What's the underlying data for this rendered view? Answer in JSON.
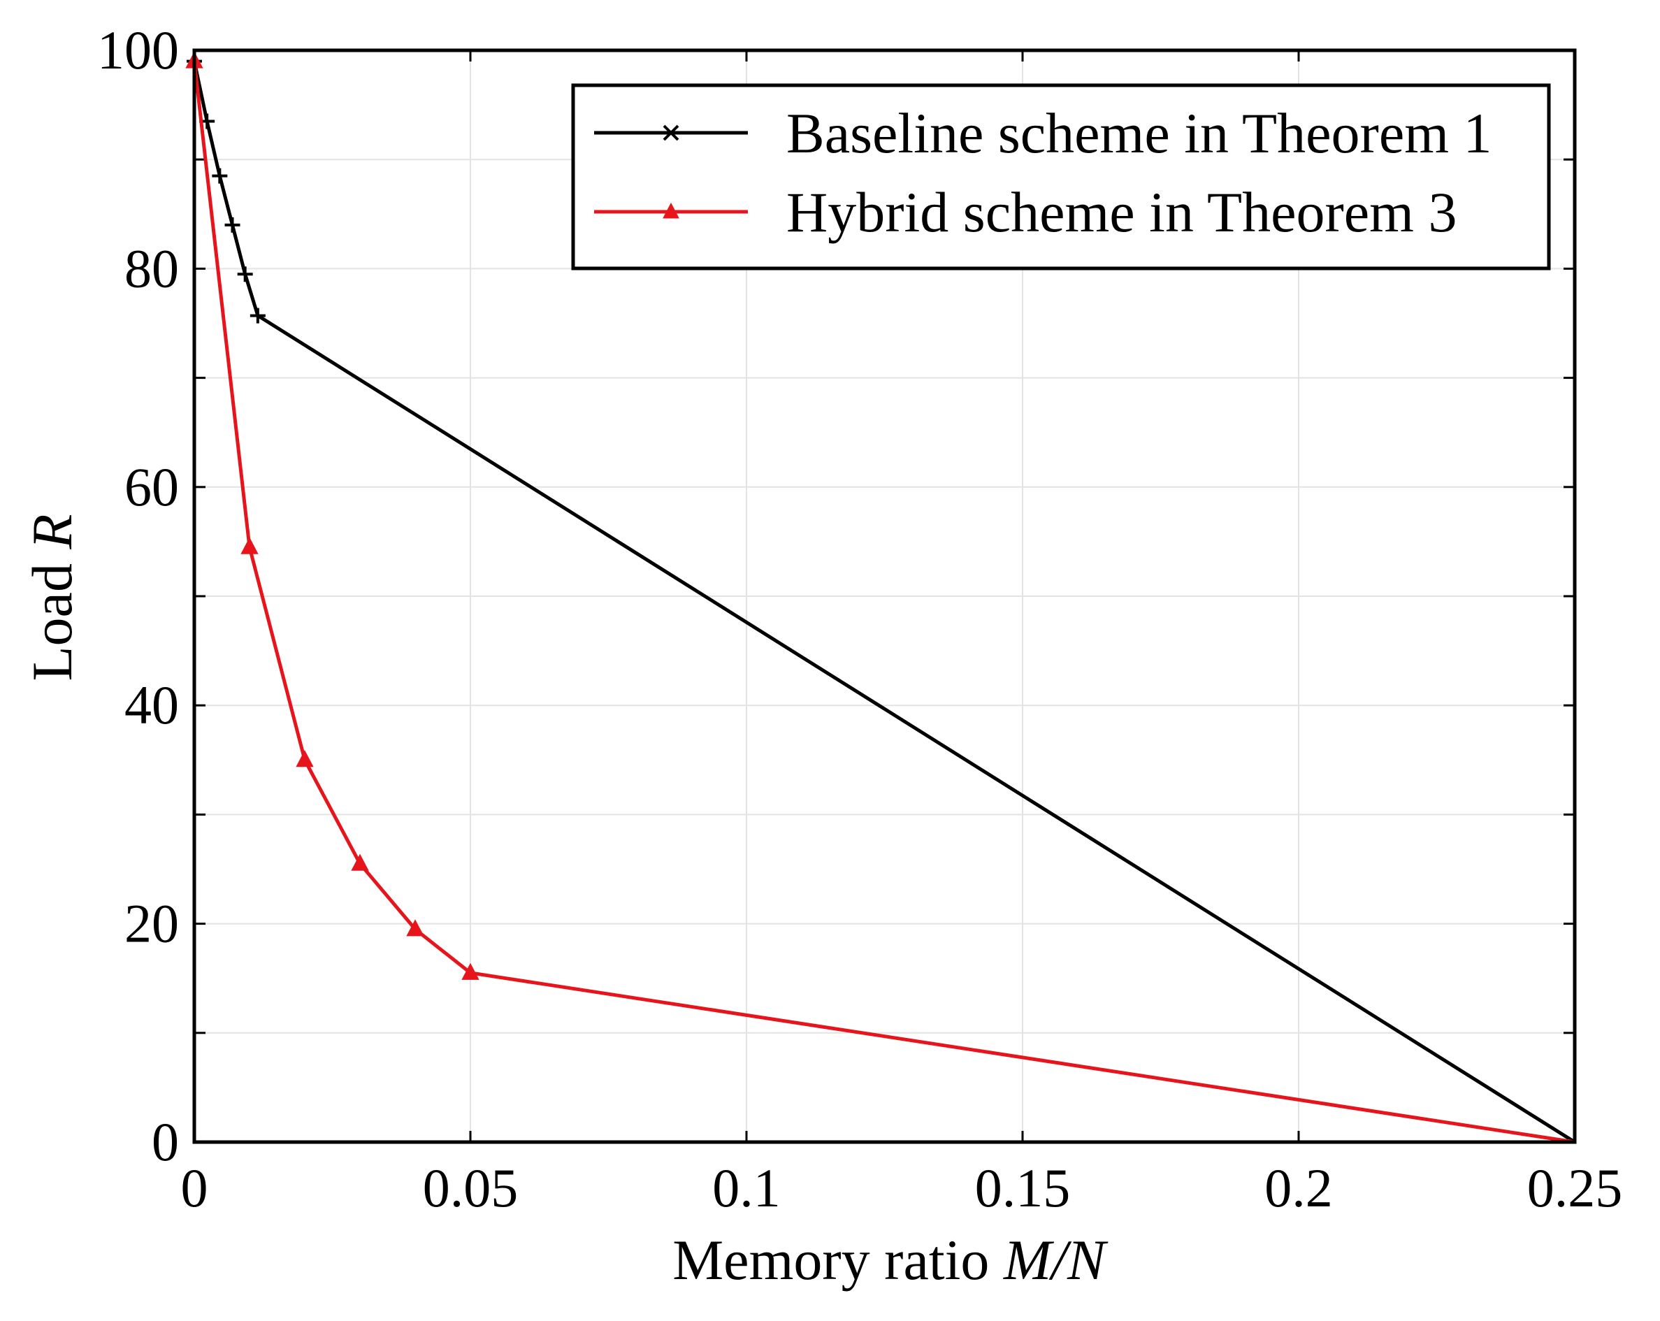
{
  "chart_data": {
    "type": "line",
    "title": "",
    "xlabel_prefix": "Memory ratio ",
    "xlabel_var": "M/N",
    "ylabel_prefix": "Load ",
    "ylabel_var": "R",
    "xlim": [
      0,
      0.25
    ],
    "ylim": [
      0,
      100
    ],
    "xticks": [
      0,
      0.05,
      0.1,
      0.15,
      0.2,
      0.25
    ],
    "xtick_labels": [
      "0",
      "0.05",
      "0.1",
      "0.15",
      "0.2",
      "0.25"
    ],
    "yticks": [
      0,
      20,
      40,
      60,
      80,
      100
    ],
    "ytick_labels": [
      "0",
      "20",
      "40",
      "60",
      "80",
      "100"
    ],
    "minor_yticks": [
      10,
      30,
      50,
      70,
      90
    ],
    "grid": true,
    "legend_position": "top-right",
    "series": [
      {
        "name": "Baseline scheme in Theorem 1",
        "color": "#000000",
        "marker": "cross",
        "x": [
          0,
          0.0023,
          0.0046,
          0.0069,
          0.0092,
          0.0115,
          0.25
        ],
        "y": [
          99,
          93.5,
          88.5,
          84,
          79.5,
          75.7,
          0
        ]
      },
      {
        "name": "Hybrid scheme in Theorem 3",
        "color": "#e8141c",
        "marker": "triangle",
        "x": [
          0,
          0.01,
          0.02,
          0.03,
          0.04,
          0.05,
          0.25
        ],
        "y": [
          99,
          54.5,
          35,
          25.5,
          19.5,
          15.5,
          0
        ]
      }
    ]
  }
}
